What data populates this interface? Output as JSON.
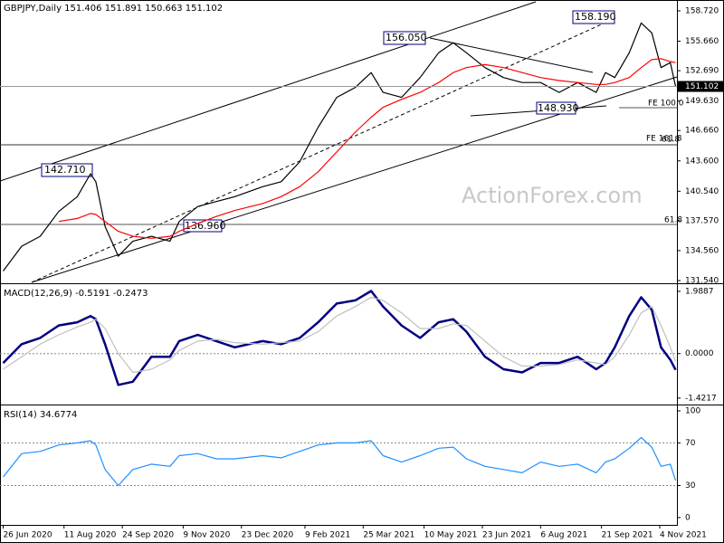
{
  "chart_data": [
    {
      "type": "line",
      "title": "GBPJPY,Daily 151.406 151.891 150.663 151.102",
      "xlim": [
        "2020-06-25",
        "2021-11-17"
      ],
      "x": [
        "2020-06-26",
        "2020-07-10",
        "2020-07-24",
        "2020-08-07",
        "2020-08-21",
        "2020-08-31",
        "2020-09-04",
        "2020-09-11",
        "2020-09-21",
        "2020-10-02",
        "2020-10-16",
        "2020-10-30",
        "2020-11-06",
        "2020-11-20",
        "2020-12-04",
        "2020-12-18",
        "2021-01-08",
        "2021-01-22",
        "2021-02-05",
        "2021-02-19",
        "2021-03-05",
        "2021-03-19",
        "2021-03-31",
        "2021-04-09",
        "2021-04-23",
        "2021-05-07",
        "2021-05-21",
        "2021-06-01",
        "2021-06-11",
        "2021-06-25",
        "2021-07-09",
        "2021-07-23",
        "2021-08-06",
        "2021-08-20",
        "2021-09-03",
        "2021-09-17",
        "2021-09-24",
        "2021-10-01",
        "2021-10-12",
        "2021-10-21",
        "2021-10-29",
        "2021-11-05",
        "2021-11-12",
        "2021-11-16"
      ],
      "series": [
        {
          "color": "#000000",
          "values": [
            132.5,
            135.0,
            136.0,
            138.5,
            140.0,
            142.3,
            141.5,
            137.0,
            134.0,
            135.5,
            136.0,
            135.5,
            137.5,
            139.0,
            139.5,
            140.0,
            141.0,
            141.5,
            143.5,
            147.0,
            150.0,
            151.0,
            152.5,
            150.5,
            150.0,
            152.0,
            154.5,
            155.5,
            154.5,
            153.0,
            152.0,
            151.5,
            151.5,
            150.5,
            151.5,
            150.5,
            152.5,
            152.0,
            154.5,
            157.5,
            156.5,
            153.0,
            153.5,
            151.102
          ]
        },
        {
          "color": "#ff0000",
          "values": [
            null,
            null,
            null,
            137.5,
            137.8,
            138.3,
            138.2,
            137.5,
            136.5,
            136.0,
            135.8,
            136.0,
            136.5,
            137.3,
            138.0,
            138.6,
            139.3,
            140.0,
            141.0,
            142.5,
            144.5,
            146.5,
            148.0,
            149.0,
            149.8,
            150.5,
            151.5,
            152.5,
            153.0,
            153.3,
            153.0,
            152.5,
            152.0,
            151.7,
            151.5,
            151.3,
            151.3,
            151.5,
            152.0,
            153.0,
            153.8,
            153.9,
            153.6,
            153.5
          ]
        }
      ],
      "ylim": [
        131.36,
        159.63
      ],
      "yticks": [
        {
          "value": 131.54,
          "label": "131.540"
        },
        {
          "value": 134.56,
          "label": "134.560"
        },
        {
          "value": 137.57,
          "label": "137.570"
        },
        {
          "value": 140.54,
          "label": "140.540"
        },
        {
          "value": 143.6,
          "label": "143.600"
        },
        {
          "value": 146.66,
          "label": "146.660"
        },
        {
          "value": 149.63,
          "label": "149.630"
        },
        {
          "value": 152.69,
          "label": "152.690"
        },
        {
          "value": 155.66,
          "label": "155.660"
        },
        {
          "value": 158.72,
          "label": "158.720"
        }
      ],
      "last": {
        "value": 151.102,
        "label": "151.102"
      },
      "annotations": [
        "142.710",
        "136.960",
        "156.050",
        "148.930",
        "158.190",
        "FE 100.0",
        "FE 161.8",
        "61.8",
        "61.8"
      ],
      "watermark": "ActionForex.com"
    },
    {
      "type": "line",
      "title": "MACD(12,26,9) -0.5191 -0.2473",
      "series": [
        {
          "color": "#000080",
          "values": [
            -0.3,
            0.3,
            0.5,
            0.9,
            1.0,
            1.2,
            1.1,
            0.3,
            -1.0,
            -0.9,
            -0.1,
            -0.1,
            0.4,
            0.6,
            0.4,
            0.2,
            0.4,
            0.3,
            0.5,
            1.0,
            1.6,
            1.7,
            2.0,
            1.5,
            0.9,
            0.5,
            1.0,
            1.1,
            0.7,
            -0.1,
            -0.5,
            -0.6,
            -0.3,
            -0.3,
            -0.1,
            -0.5,
            -0.3,
            0.2,
            1.2,
            1.8,
            1.4,
            0.2,
            -0.2,
            -0.5191
          ]
        },
        {
          "color": "#c0c0c0",
          "values": [
            -0.5,
            -0.1,
            0.3,
            0.6,
            0.85,
            1.0,
            1.1,
            0.8,
            0.0,
            -0.6,
            -0.5,
            -0.2,
            0.1,
            0.4,
            0.45,
            0.35,
            0.3,
            0.35,
            0.4,
            0.7,
            1.2,
            1.5,
            1.8,
            1.7,
            1.3,
            0.8,
            0.8,
            0.95,
            0.9,
            0.4,
            -0.1,
            -0.4,
            -0.4,
            -0.35,
            -0.2,
            -0.3,
            -0.35,
            -0.1,
            0.6,
            1.3,
            1.5,
            0.9,
            0.2,
            -0.2473
          ]
        }
      ],
      "ylim": [
        -1.57,
        2.16
      ],
      "yticks": [
        -1.4217,
        {
          "value": 0,
          "label": "0.0000"
        },
        1.9887
      ],
      "levels": [
        0
      ]
    },
    {
      "type": "line",
      "title": "RSI(14) 34.6774",
      "series": [
        {
          "color": "#1e90ff",
          "values": [
            38,
            60,
            62,
            68,
            70,
            72,
            68,
            45,
            30,
            45,
            50,
            48,
            58,
            60,
            55,
            55,
            58,
            56,
            62,
            68,
            70,
            70,
            72,
            58,
            52,
            58,
            65,
            66,
            55,
            48,
            45,
            42,
            52,
            48,
            50,
            42,
            52,
            55,
            65,
            75,
            66,
            48,
            50,
            34.6774
          ]
        }
      ],
      "ylim": [
        -6.9,
        103.4
      ],
      "yticks": [
        0,
        30,
        70,
        100
      ],
      "levels": [
        30,
        70
      ],
      "xticks": [
        {
          "value": "2020-06-26",
          "label": "26 Jun 2020"
        },
        {
          "value": "2020-08-11",
          "label": "11 Aug 2020"
        },
        {
          "value": "2020-09-24",
          "label": "24 Sep 2020"
        },
        {
          "value": "2020-11-09",
          "label": "9 Nov 2020"
        },
        {
          "value": "2020-12-23",
          "label": "23 Dec 2020"
        },
        {
          "value": "2021-02-09",
          "label": "9 Feb 2021"
        },
        {
          "value": "2021-03-25",
          "label": "25 Mar 2021"
        },
        {
          "value": "2021-05-10",
          "label": "10 May 2021"
        },
        {
          "value": "2021-06-23",
          "label": "23 Jun 2021"
        },
        {
          "value": "2021-08-06",
          "label": "6 Aug 2021"
        },
        {
          "value": "2021-09-21",
          "label": "21 Sep 2021"
        },
        {
          "value": "2021-11-04",
          "label": "4 Nov 2021"
        }
      ]
    }
  ]
}
